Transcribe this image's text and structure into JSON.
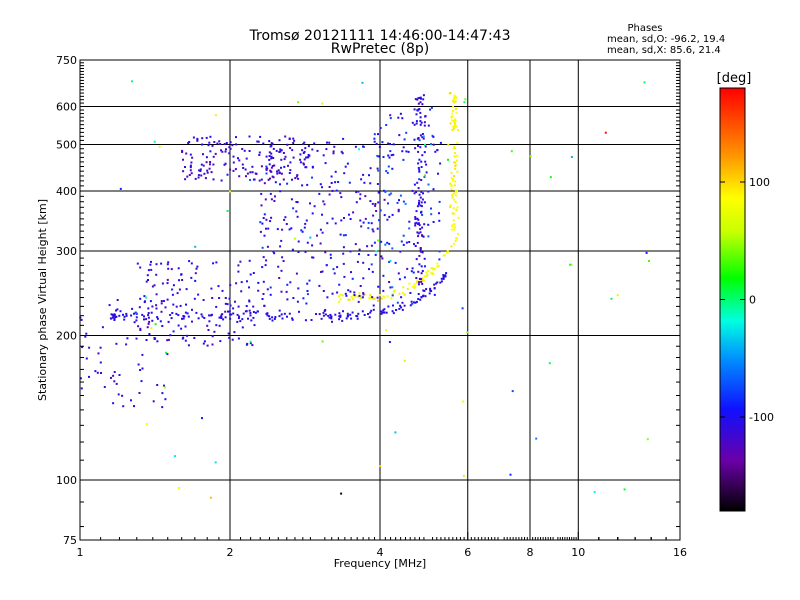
{
  "chart_data": {
    "type": "scatter",
    "title": "Tromsø 20121111 14:46:00-14:47:43",
    "subtitle": "RwPretec (8p)",
    "xlabel": "Frequency [MHz]",
    "ylabel": "Stationary phase Virtual Height [km]",
    "x_scale": "log",
    "y_scale": "log",
    "xlim": [
      1,
      16
    ],
    "ylim": [
      75,
      750
    ],
    "x_ticks": [
      1,
      2,
      4,
      6,
      8,
      10,
      16
    ],
    "y_ticks": [
      75,
      100,
      200,
      300,
      400,
      500,
      600,
      750
    ],
    "grid": true,
    "stats": {
      "heading": "Phases",
      "line1": "mean, sd,O: -96.2, 19.4",
      "line2": "mean, sd,X:  85.6, 21.4"
    },
    "colorbar": {
      "label": "[deg]",
      "range": [
        -180,
        180
      ],
      "tick_values": [
        100,
        0,
        -100
      ],
      "tick_labels": [
        "100",
        "0",
        "-100"
      ]
    },
    "traces": [
      {
        "x_range": [
          1.15,
          5.7
        ],
        "y_range": [
          220,
          285
        ],
        "n": 180,
        "phase_mean": -105,
        "phase_sd": 12,
        "shape": "o-trace"
      },
      {
        "x_range": [
          3.3,
          5.8
        ],
        "y_range": [
          240,
          330
        ],
        "n": 90,
        "phase_mean": 85,
        "phase_sd": 15,
        "shape": "x-trace"
      },
      {
        "x_range": [
          5.45,
          5.8
        ],
        "y_range": [
          330,
          640
        ],
        "n": 90,
        "phase_mean": 88,
        "phase_sd": 12,
        "shape": "x-vertical"
      },
      {
        "x_range": [
          4.6,
          5.0
        ],
        "y_range": [
          230,
          640
        ],
        "n": 110,
        "phase_mean": -110,
        "phase_sd": 18,
        "shape": "o-vertical"
      },
      {
        "x_range": [
          1.6,
          2.9
        ],
        "y_range": [
          420,
          520
        ],
        "n": 170,
        "phase_mean": -115,
        "phase_sd": 15,
        "shape": "cluster"
      },
      {
        "x_range": [
          2.3,
          4.0
        ],
        "y_range": [
          230,
          520
        ],
        "n": 260,
        "phase_mean": -105,
        "phase_sd": 25,
        "shape": "cluster"
      },
      {
        "x_range": [
          1.3,
          2.3
        ],
        "y_range": [
          190,
          290
        ],
        "n": 150,
        "phase_mean": -110,
        "phase_sd": 18,
        "shape": "cluster"
      },
      {
        "x_range": [
          1.0,
          1.5
        ],
        "y_range": [
          140,
          240
        ],
        "n": 70,
        "phase_mean": -105,
        "phase_sd": 18,
        "shape": "cluster"
      },
      {
        "x_range": [
          3.9,
          5.3
        ],
        "y_range": [
          230,
          600
        ],
        "n": 140,
        "phase_mean": -95,
        "phase_sd": 35,
        "shape": "cluster"
      },
      {
        "x_range": [
          1.2,
          14.5
        ],
        "y_range": [
          90,
          700
        ],
        "n": 70,
        "phase_mean": 0,
        "phase_sd": 120,
        "shape": "scatter"
      }
    ]
  }
}
